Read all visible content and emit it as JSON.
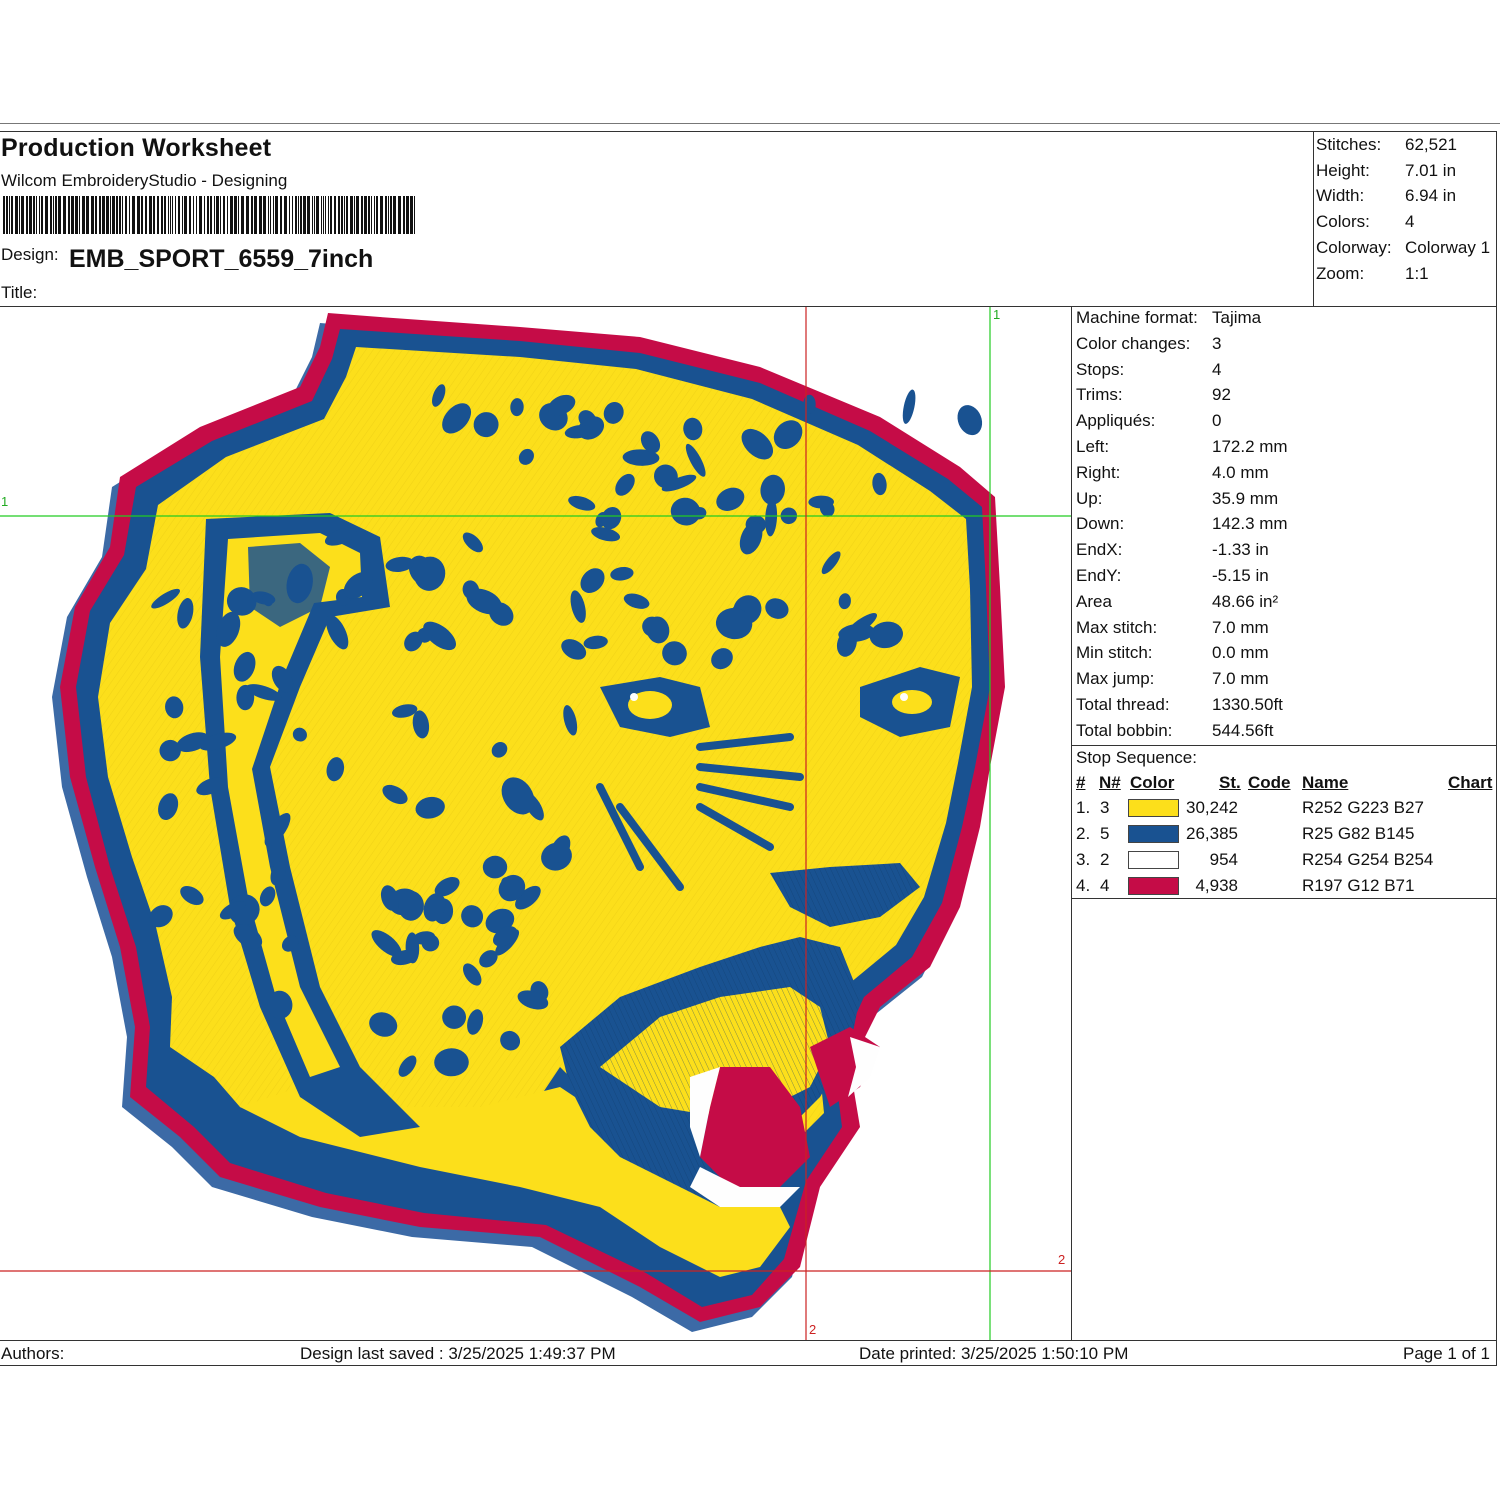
{
  "header": {
    "title": "Production Worksheet",
    "subtitle": "Wilcom EmbroideryStudio - Designing",
    "design_label": "Design:",
    "design_name": "EMB_SPORT_6559_7inch",
    "title_label": "Title:"
  },
  "stats": [
    {
      "label": "Stitches:",
      "value": "62,521"
    },
    {
      "label": "Height:",
      "value": "7.01 in"
    },
    {
      "label": "Width:",
      "value": "6.94 in"
    },
    {
      "label": "Colors:",
      "value": "4"
    },
    {
      "label": "Colorway:",
      "value": "Colorway 1"
    },
    {
      "label": "Zoom:",
      "value": "1:1"
    }
  ],
  "machine_info": [
    {
      "label": "Machine format:",
      "value": "Tajima"
    },
    {
      "label": "Color changes:",
      "value": "3"
    },
    {
      "label": "Stops:",
      "value": "4"
    },
    {
      "label": "Trims:",
      "value": "92"
    },
    {
      "label": "Appliqués:",
      "value": "0"
    },
    {
      "label": "Left:",
      "value": "172.2 mm"
    },
    {
      "label": "Right:",
      "value": "4.0 mm"
    },
    {
      "label": "Up:",
      "value": "35.9 mm"
    },
    {
      "label": "Down:",
      "value": "142.3 mm"
    },
    {
      "label": "EndX:",
      "value": "-1.33 in"
    },
    {
      "label": "EndY:",
      "value": "-5.15 in"
    },
    {
      "label": "Area",
      "value": " 48.66 in²"
    },
    {
      "label": "Max stitch:",
      "value": "7.0 mm"
    },
    {
      "label": "Min stitch:",
      "value": "0.0 mm"
    },
    {
      "label": "Max jump:",
      "value": "7.0 mm"
    },
    {
      "label": "Total thread:",
      "value": "1330.50ft"
    },
    {
      "label": "Total bobbin:",
      "value": "544.56ft"
    }
  ],
  "stop_sequence": {
    "title": "Stop Sequence:",
    "columns": [
      "#",
      "N#",
      "Color",
      "St.",
      "Code",
      "Name",
      "Chart"
    ],
    "rows": [
      {
        "num": "1.",
        "n": "3",
        "color": "#FCDF1B",
        "stitches": "30,242",
        "name": "R252 G223 B27"
      },
      {
        "num": "2.",
        "n": "5",
        "color": "#195291",
        "stitches": "26,385",
        "name": "R25 G82 B145"
      },
      {
        "num": "3.",
        "n": "2",
        "color": "#FEFEFE",
        "stitches": "954",
        "name": "R254 G254 B254"
      },
      {
        "num": "4.",
        "n": "4",
        "color": "#C50C47",
        "stitches": "4,938",
        "name": "R197 G12 B71"
      }
    ]
  },
  "guides": {
    "h1": "1",
    "v1": "1",
    "h2": "2",
    "v2": "2"
  },
  "footer": {
    "authors": "Authors:",
    "last_saved": "Design last saved : 3/25/2025 1:49:37 PM",
    "printed": "Date printed: 3/25/2025 1:50:10 PM",
    "page": "Page 1 of 1"
  },
  "palette": {
    "yellow": "#FCDF1B",
    "blue": "#195291",
    "white": "#FEFEFE",
    "red": "#C50C47",
    "guide_green": "#22cc22",
    "guide_red": "#cc2222"
  }
}
